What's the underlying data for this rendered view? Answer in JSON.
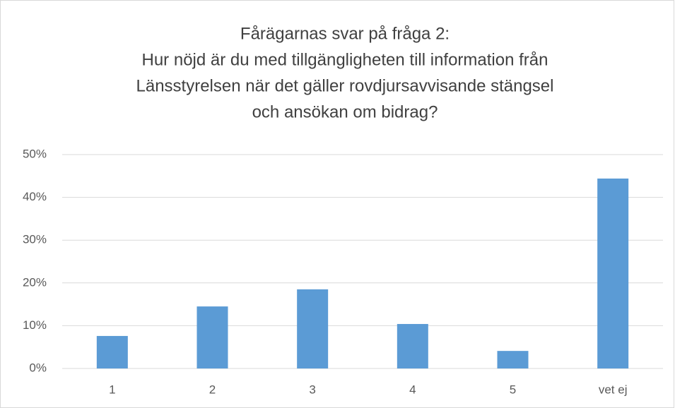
{
  "chart_data": {
    "type": "bar",
    "title": [
      "Fårägarnas svar på fråga 2:",
      "Hur nöjd är du med tillgängligheten till information från",
      "Länsstyrelsen när det gäller rovdjursavvisande stängsel",
      "och ansökan om bidrag?"
    ],
    "categories": [
      "1",
      "2",
      "3",
      "4",
      "5",
      "vet ej"
    ],
    "values": [
      7.6,
      14.5,
      18.5,
      10.4,
      4.1,
      44.4
    ],
    "color": "#5b9bd5",
    "ylim": [
      0,
      50
    ],
    "yticks": [
      {
        "value": 0,
        "label": "0%"
      },
      {
        "value": 10,
        "label": "10%"
      },
      {
        "value": 20,
        "label": "20%"
      },
      {
        "value": 30,
        "label": "30%"
      },
      {
        "value": 40,
        "label": "40%"
      },
      {
        "value": 50,
        "label": "50%"
      }
    ],
    "grid": true
  }
}
